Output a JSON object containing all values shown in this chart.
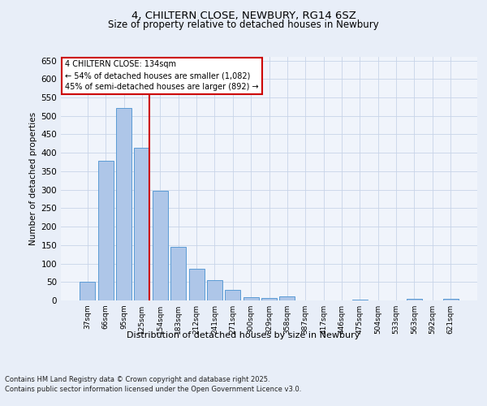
{
  "title_line1": "4, CHILTERN CLOSE, NEWBURY, RG14 6SZ",
  "title_line2": "Size of property relative to detached houses in Newbury",
  "xlabel": "Distribution of detached houses by size in Newbury",
  "ylabel": "Number of detached properties",
  "categories": [
    "37sqm",
    "66sqm",
    "95sqm",
    "125sqm",
    "154sqm",
    "183sqm",
    "212sqm",
    "241sqm",
    "271sqm",
    "300sqm",
    "329sqm",
    "358sqm",
    "387sqm",
    "417sqm",
    "446sqm",
    "475sqm",
    "504sqm",
    "533sqm",
    "563sqm",
    "592sqm",
    "621sqm"
  ],
  "values": [
    51,
    378,
    522,
    414,
    298,
    145,
    86,
    55,
    28,
    9,
    7,
    11,
    0,
    0,
    0,
    3,
    0,
    0,
    4,
    0,
    4
  ],
  "bar_color": "#aec6e8",
  "bar_edge_color": "#5b9bd5",
  "vline_color": "#cc0000",
  "vline_x": 3.425,
  "annotation_title": "4 CHILTERN CLOSE: 134sqm",
  "annotation_line1": "← 54% of detached houses are smaller (1,082)",
  "annotation_line2": "45% of semi-detached houses are larger (892) →",
  "annotation_box_color": "#ffffff",
  "annotation_box_edge": "#cc0000",
  "ylim": [
    0,
    660
  ],
  "yticks": [
    0,
    50,
    100,
    150,
    200,
    250,
    300,
    350,
    400,
    450,
    500,
    550,
    600,
    650
  ],
  "footer_line1": "Contains HM Land Registry data © Crown copyright and database right 2025.",
  "footer_line2": "Contains public sector information licensed under the Open Government Licence v3.0.",
  "bg_color": "#e8eef8",
  "plot_bg_color": "#f0f4fb",
  "grid_color": "#c8d4e8"
}
